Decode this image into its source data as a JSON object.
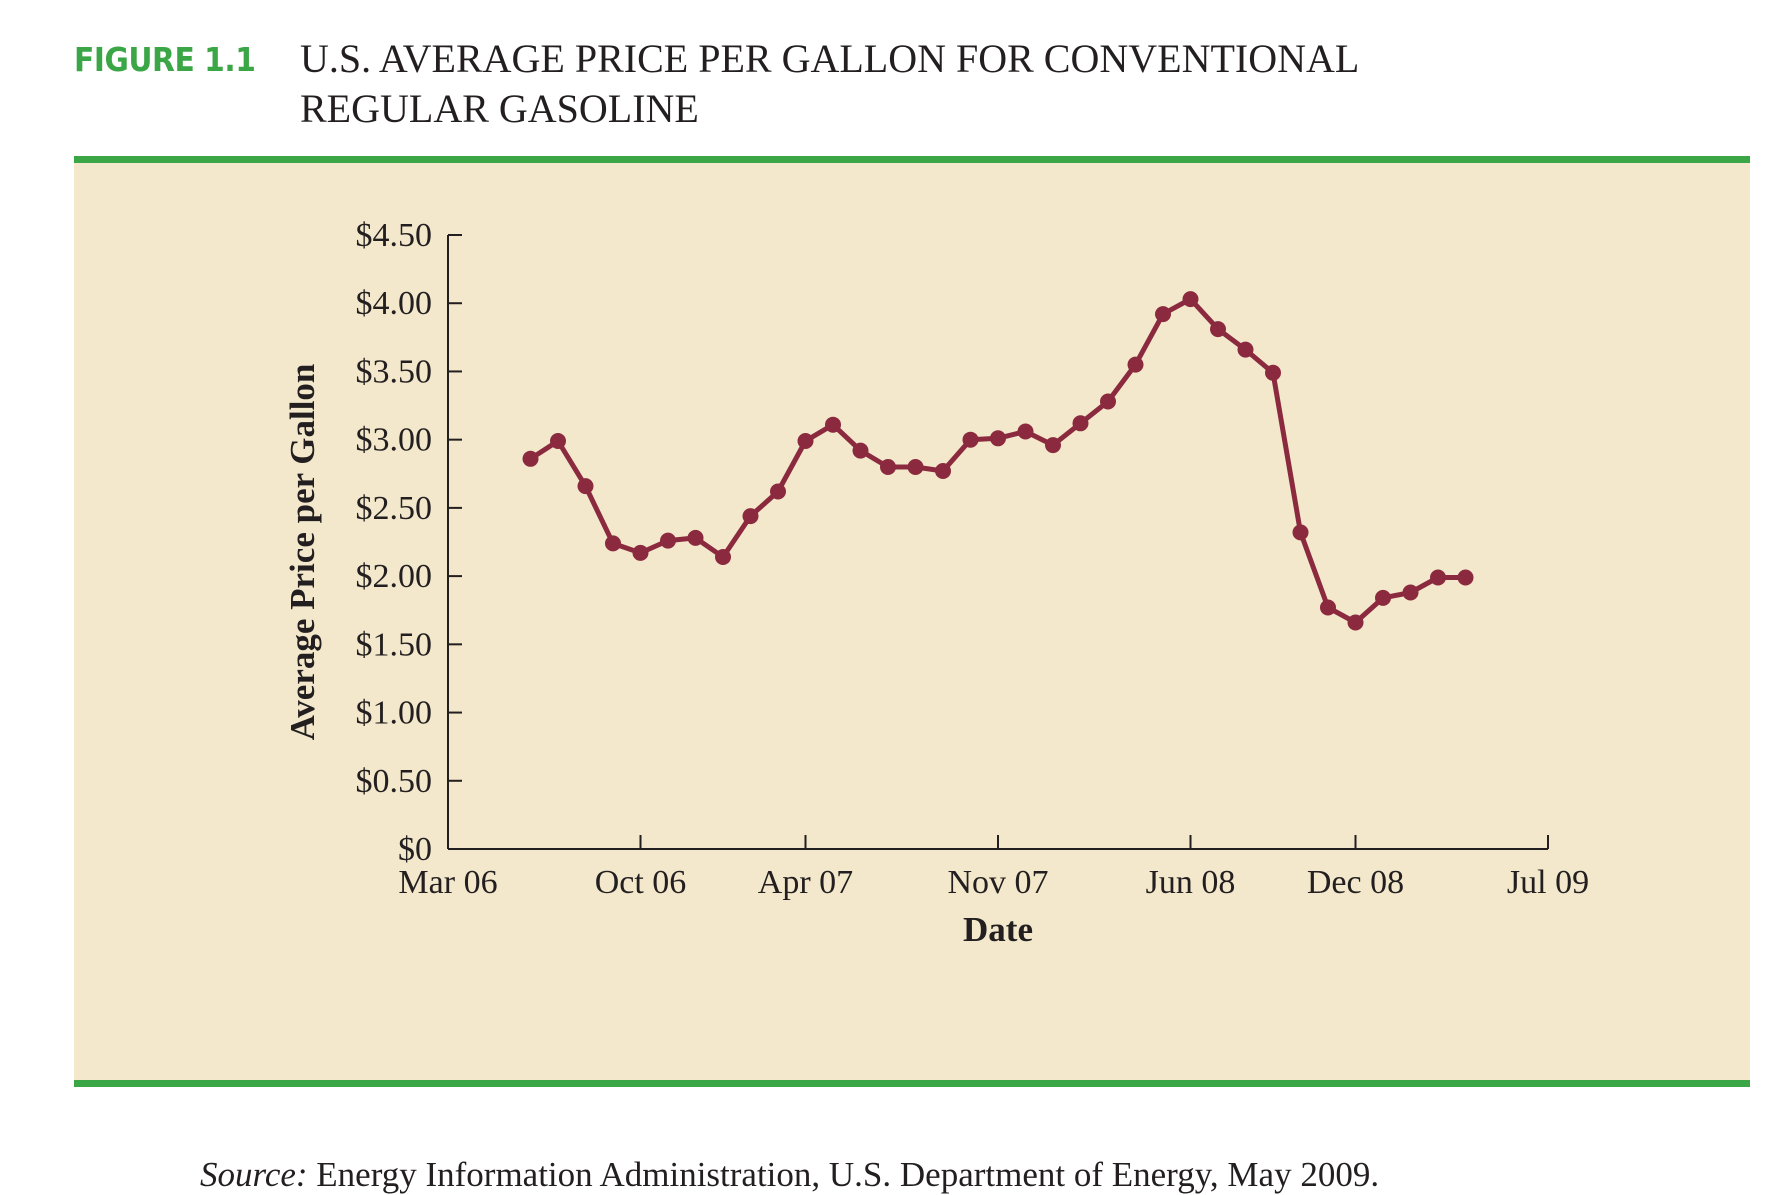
{
  "figure": {
    "label": "FIGURE 1.1",
    "title_line1": "U.S. AVERAGE PRICE PER GALLON FOR CONVENTIONAL",
    "title_line2": "REGULAR GASOLINE"
  },
  "source": {
    "label": "Source:",
    "text": " Energy Information Administration, U.S. Department of Energy, May 2009."
  },
  "colors": {
    "accent_green": "#3aa645",
    "panel_bg": "#f3e8cb",
    "line": "#8b2a3f",
    "text": "#231f20"
  },
  "chart_data": {
    "type": "line",
    "title": "U.S. AVERAGE PRICE PER GALLON FOR CONVENTIONAL REGULAR GASOLINE",
    "xlabel": "Date",
    "ylabel": "Average Price per Gallon",
    "ylim": [
      0,
      4.5
    ],
    "y_ticks": [
      "$0",
      "$0.50",
      "$1.00",
      "$1.50",
      "$2.00",
      "$2.50",
      "$3.00",
      "$3.50",
      "$4.00",
      "$4.50"
    ],
    "y_tick_values": [
      0,
      0.5,
      1.0,
      1.5,
      2.0,
      2.5,
      3.0,
      3.5,
      4.0,
      4.5
    ],
    "x_ticks": [
      "Mar 06",
      "Oct 06",
      "Apr 07",
      "Nov 07",
      "Jun 08",
      "Dec 08",
      "Jul 09"
    ],
    "x_tick_dates": [
      "2006-03",
      "2006-10",
      "2007-04",
      "2007-11",
      "2008-06",
      "2008-12",
      "2009-07"
    ],
    "grid": false,
    "legend": "none",
    "series": [
      {
        "x": [
          "2006-06",
          "2006-07",
          "2006-08",
          "2006-09",
          "2006-10",
          "2006-11",
          "2006-12",
          "2007-01",
          "2007-02",
          "2007-03",
          "2007-04",
          "2007-05",
          "2007-06",
          "2007-07",
          "2007-08",
          "2007-09",
          "2007-10",
          "2007-11",
          "2007-12",
          "2008-01",
          "2008-02",
          "2008-03",
          "2008-04",
          "2008-05",
          "2008-06",
          "2008-07",
          "2008-08",
          "2008-09",
          "2008-10",
          "2008-11",
          "2008-12",
          "2009-01",
          "2009-02",
          "2009-03",
          "2009-04"
        ],
        "values": [
          2.86,
          2.99,
          2.66,
          2.24,
          2.17,
          2.26,
          2.28,
          2.14,
          2.44,
          2.62,
          2.99,
          3.11,
          2.92,
          2.8,
          2.8,
          2.77,
          3.0,
          3.01,
          3.06,
          2.96,
          3.12,
          3.28,
          3.55,
          3.92,
          4.03,
          3.81,
          3.66,
          3.49,
          2.32,
          1.77,
          1.66,
          1.84,
          1.88,
          1.99,
          1.99
        ]
      }
    ]
  }
}
